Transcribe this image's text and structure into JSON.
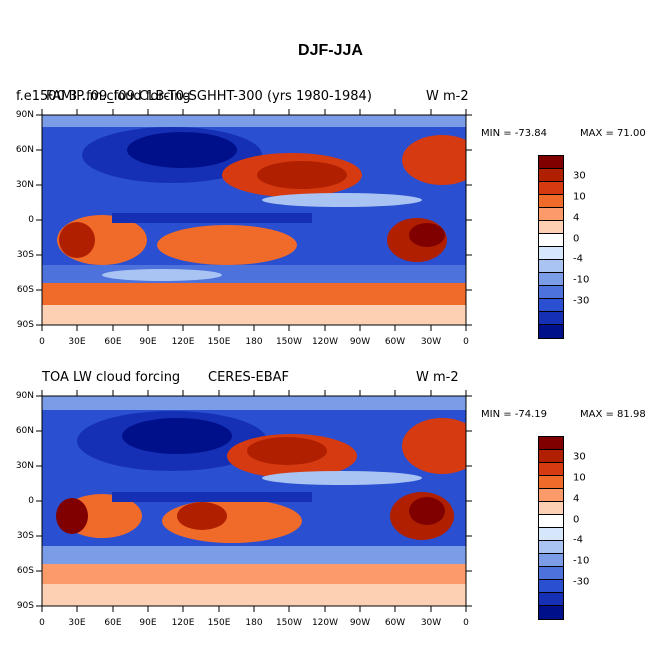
{
  "page_title": "DJF-JJA",
  "colorbar_colors": [
    "#800000",
    "#b02000",
    "#d63a10",
    "#f06a2a",
    "#fc9a6a",
    "#fdd0b4",
    "#ffffff",
    "#d6e6fb",
    "#a9c4f3",
    "#7b9ce6",
    "#4e72dc",
    "#2a4fd0",
    "#1530b5",
    "#00108a"
  ],
  "colorbar_labels": [
    "30",
    "10",
    "4",
    "0",
    "-4",
    "-10",
    "-30"
  ],
  "lat_labels": [
    "90N",
    "60N",
    "30N",
    "0",
    "30S",
    "60S",
    "90S"
  ],
  "lon_labels": [
    "0",
    "30E",
    "60E",
    "90E",
    "120E",
    "150E",
    "180",
    "150W",
    "120W",
    "90W",
    "60W",
    "30W",
    "0"
  ],
  "panels": [
    {
      "left_title": "f.e1500 3 ..m.cloud forcing",
      "center_title": "FAMIP.f09_f09.CLB-T0-SGHHT-300 (yrs 1980-1984)",
      "right_title": "W m-2",
      "min_label": "MIN = -73.84",
      "max_label": "MAX =  71.00"
    },
    {
      "left_title": "TOA LW cloud forcing",
      "center_title": "CERES-EBAF",
      "right_title": "W m-2",
      "min_label": "MIN = -74.19",
      "max_label": "MAX =  81.98"
    }
  ]
}
